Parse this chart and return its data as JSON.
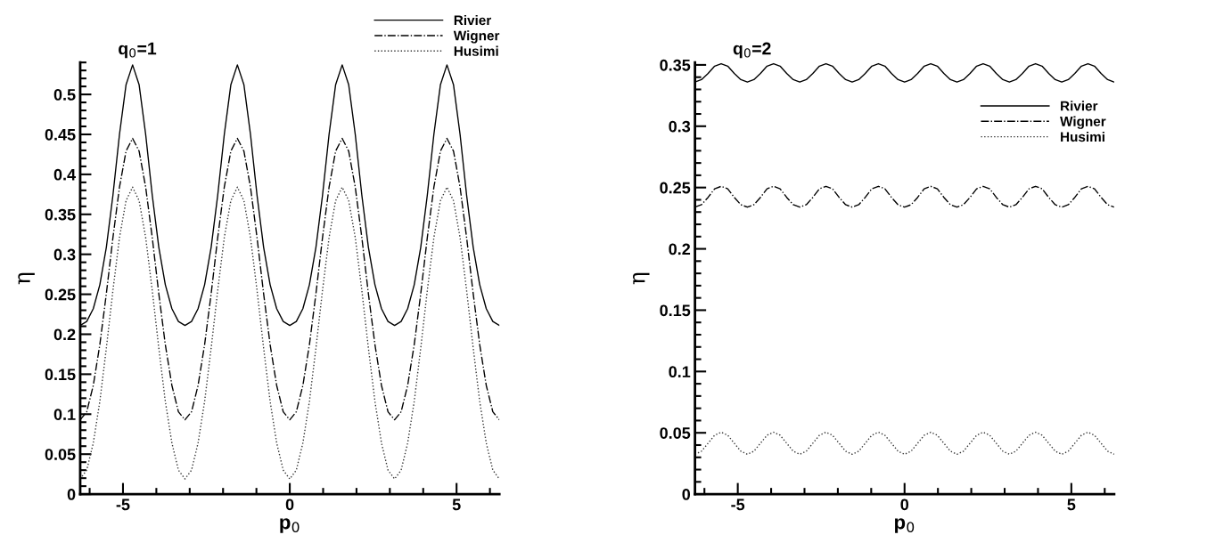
{
  "chart_data": [
    {
      "type": "line",
      "title": "q$_{0}$=1",
      "xlabel": "p$_{0}$",
      "ylabel": "η",
      "xlim": [
        -6.283,
        6.283
      ],
      "xticks": [
        -5,
        0,
        5
      ],
      "ylim": [
        0,
        0.54
      ],
      "yticks": [
        0,
        0.05,
        0.1,
        0.15,
        0.2,
        0.25,
        0.3,
        0.35,
        0.4,
        0.45,
        0.5
      ],
      "legend": "top",
      "grid": false,
      "x": [
        -6.283,
        -6.087,
        -5.89,
        -5.694,
        -5.498,
        -5.301,
        -5.105,
        -4.909,
        -4.712,
        -4.516,
        -4.32,
        -4.123,
        -3.927,
        -3.731,
        -3.534,
        -3.338,
        -3.142,
        -2.945,
        -2.749,
        -2.553,
        -2.356,
        -2.16,
        -1.963,
        -1.767,
        -1.571,
        -1.374,
        -1.178,
        -0.982,
        -0.785,
        -0.589,
        -0.393,
        -0.196,
        0,
        0.196,
        0.393,
        0.589,
        0.785,
        0.982,
        1.178,
        1.374,
        1.571,
        1.767,
        1.963,
        2.16,
        2.356,
        2.553,
        2.749,
        2.945,
        3.142,
        3.338,
        3.534,
        3.731,
        3.927,
        4.123,
        4.32,
        4.516,
        4.712,
        4.909,
        5.105,
        5.301,
        5.498,
        5.694,
        5.89,
        6.087,
        6.283
      ],
      "series": [
        {
          "name": "Rivier",
          "color": "#000000",
          "line_style": "solid",
          "values": [
            0.211,
            0.216,
            0.232,
            0.262,
            0.309,
            0.374,
            0.45,
            0.512,
            0.537,
            0.512,
            0.45,
            0.374,
            0.309,
            0.262,
            0.232,
            0.216,
            0.211,
            0.216,
            0.232,
            0.262,
            0.309,
            0.374,
            0.45,
            0.512,
            0.537,
            0.512,
            0.45,
            0.374,
            0.309,
            0.262,
            0.232,
            0.216,
            0.211,
            0.216,
            0.232,
            0.262,
            0.309,
            0.374,
            0.45,
            0.512,
            0.537,
            0.512,
            0.45,
            0.374,
            0.309,
            0.262,
            0.232,
            0.216,
            0.211,
            0.216,
            0.232,
            0.262,
            0.309,
            0.374,
            0.45,
            0.512,
            0.537,
            0.512,
            0.45,
            0.374,
            0.309,
            0.262,
            0.232,
            0.216,
            0.211
          ]
        },
        {
          "name": "Wigner",
          "color": "#000000",
          "line_style": "dashdot",
          "values": [
            0.093,
            0.103,
            0.136,
            0.187,
            0.251,
            0.321,
            0.384,
            0.429,
            0.445,
            0.429,
            0.384,
            0.321,
            0.251,
            0.187,
            0.136,
            0.103,
            0.093,
            0.103,
            0.136,
            0.187,
            0.251,
            0.321,
            0.384,
            0.429,
            0.445,
            0.429,
            0.384,
            0.321,
            0.251,
            0.187,
            0.136,
            0.103,
            0.093,
            0.103,
            0.136,
            0.187,
            0.251,
            0.321,
            0.384,
            0.429,
            0.445,
            0.429,
            0.384,
            0.321,
            0.251,
            0.187,
            0.136,
            0.103,
            0.093,
            0.103,
            0.136,
            0.187,
            0.251,
            0.321,
            0.384,
            0.429,
            0.445,
            0.429,
            0.384,
            0.321,
            0.251,
            0.187,
            0.136,
            0.103,
            0.093
          ]
        },
        {
          "name": "Husimi",
          "color": "#333333",
          "line_style": "dotted",
          "values": [
            0.019,
            0.03,
            0.064,
            0.116,
            0.183,
            0.255,
            0.321,
            0.367,
            0.384,
            0.367,
            0.321,
            0.255,
            0.183,
            0.116,
            0.064,
            0.03,
            0.019,
            0.03,
            0.064,
            0.116,
            0.183,
            0.255,
            0.321,
            0.367,
            0.384,
            0.367,
            0.321,
            0.255,
            0.183,
            0.116,
            0.064,
            0.03,
            0.019,
            0.03,
            0.064,
            0.116,
            0.183,
            0.255,
            0.321,
            0.367,
            0.384,
            0.367,
            0.321,
            0.255,
            0.183,
            0.116,
            0.064,
            0.03,
            0.019,
            0.03,
            0.064,
            0.116,
            0.183,
            0.255,
            0.321,
            0.367,
            0.384,
            0.367,
            0.321,
            0.255,
            0.183,
            0.116,
            0.064,
            0.03,
            0.019
          ]
        }
      ]
    },
    {
      "type": "line",
      "title": "q$_{0}$=2",
      "xlabel": "p$_{0}$",
      "ylabel": "η",
      "xlim": [
        -6.283,
        6.283
      ],
      "xticks": [
        -5,
        0,
        5
      ],
      "ylim": [
        0,
        0.352
      ],
      "yticks": [
        0,
        0.05,
        0.1,
        0.15,
        0.2,
        0.25,
        0.3,
        0.35
      ],
      "legend": "top right",
      "grid": false,
      "x": [
        -6.283,
        -6.087,
        -5.89,
        -5.694,
        -5.498,
        -5.301,
        -5.105,
        -4.909,
        -4.712,
        -4.516,
        -4.32,
        -4.123,
        -3.927,
        -3.731,
        -3.534,
        -3.338,
        -3.142,
        -2.945,
        -2.749,
        -2.553,
        -2.356,
        -2.16,
        -1.963,
        -1.767,
        -1.571,
        -1.374,
        -1.178,
        -0.982,
        -0.785,
        -0.589,
        -0.393,
        -0.196,
        0,
        0.196,
        0.393,
        0.589,
        0.785,
        0.982,
        1.178,
        1.374,
        1.571,
        1.767,
        1.963,
        2.16,
        2.356,
        2.553,
        2.749,
        2.945,
        3.142,
        3.338,
        3.534,
        3.731,
        3.927,
        4.123,
        4.32,
        4.516,
        4.712,
        4.909,
        5.105,
        5.301,
        5.498,
        5.694,
        5.89,
        6.087,
        6.283
      ],
      "series": [
        {
          "name": "Rivier",
          "color": "#000000",
          "line_style": "solid",
          "values": [
            0.336,
            0.338,
            0.343,
            0.349,
            0.351,
            0.349,
            0.343,
            0.338,
            0.336,
            0.338,
            0.343,
            0.349,
            0.351,
            0.349,
            0.343,
            0.338,
            0.336,
            0.338,
            0.343,
            0.349,
            0.351,
            0.349,
            0.343,
            0.338,
            0.336,
            0.338,
            0.343,
            0.349,
            0.351,
            0.349,
            0.343,
            0.338,
            0.336,
            0.338,
            0.343,
            0.349,
            0.351,
            0.349,
            0.343,
            0.338,
            0.336,
            0.338,
            0.343,
            0.349,
            0.351,
            0.349,
            0.343,
            0.338,
            0.336,
            0.338,
            0.343,
            0.349,
            0.351,
            0.349,
            0.343,
            0.338,
            0.336,
            0.338,
            0.343,
            0.349,
            0.351,
            0.349,
            0.343,
            0.338,
            0.336
          ]
        },
        {
          "name": "Wigner",
          "color": "#000000",
          "line_style": "dashdot",
          "values": [
            0.234,
            0.236,
            0.242,
            0.249,
            0.251,
            0.249,
            0.242,
            0.236,
            0.234,
            0.236,
            0.242,
            0.249,
            0.251,
            0.249,
            0.242,
            0.236,
            0.234,
            0.236,
            0.242,
            0.249,
            0.251,
            0.249,
            0.242,
            0.236,
            0.234,
            0.236,
            0.242,
            0.249,
            0.251,
            0.249,
            0.242,
            0.236,
            0.234,
            0.236,
            0.242,
            0.249,
            0.251,
            0.249,
            0.242,
            0.236,
            0.234,
            0.236,
            0.242,
            0.249,
            0.251,
            0.249,
            0.242,
            0.236,
            0.234,
            0.236,
            0.242,
            0.249,
            0.251,
            0.249,
            0.242,
            0.236,
            0.234,
            0.236,
            0.242,
            0.249,
            0.251,
            0.249,
            0.242,
            0.236,
            0.234
          ]
        },
        {
          "name": "Husimi",
          "color": "#333333",
          "line_style": "dotted",
          "values": [
            0.0325,
            0.035,
            0.0415,
            0.048,
            0.0505,
            0.048,
            0.0415,
            0.035,
            0.0325,
            0.035,
            0.0415,
            0.048,
            0.0505,
            0.048,
            0.0415,
            0.035,
            0.0325,
            0.035,
            0.0415,
            0.048,
            0.0505,
            0.048,
            0.0415,
            0.035,
            0.0325,
            0.035,
            0.0415,
            0.048,
            0.0505,
            0.048,
            0.0415,
            0.035,
            0.0325,
            0.035,
            0.0415,
            0.048,
            0.0505,
            0.048,
            0.0415,
            0.035,
            0.0325,
            0.035,
            0.0415,
            0.048,
            0.0505,
            0.048,
            0.0415,
            0.035,
            0.0325,
            0.035,
            0.0415,
            0.048,
            0.0505,
            0.048,
            0.0415,
            0.035,
            0.0325,
            0.035,
            0.0415,
            0.048,
            0.0505,
            0.048,
            0.0415,
            0.035,
            0.0325
          ]
        }
      ]
    }
  ]
}
